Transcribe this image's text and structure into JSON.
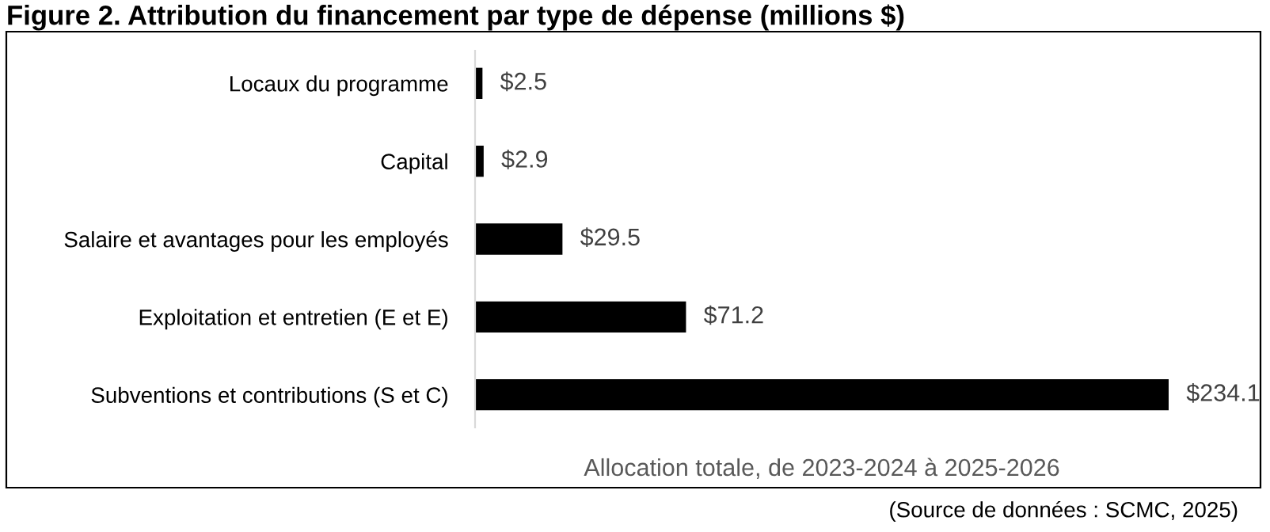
{
  "chart_data": {
    "type": "bar",
    "orientation": "horizontal",
    "title": "Figure 2. Attribution du financement par type de dépense (millions $)",
    "categories": [
      "Locaux du programme",
      "Capital",
      "Salaire et avantages pour les employés",
      "Exploitation et entretien (E et E)",
      "Subventions et contributions (S et C)"
    ],
    "values": [
      2.5,
      2.9,
      29.5,
      71.2,
      234.1
    ],
    "value_labels": [
      "$2.5",
      "$2.9",
      "$29.5",
      "$71.2",
      "$234.1"
    ],
    "color": "#000000",
    "xlabel": "Allocation totale, de 2023-2024 à 2025-2026",
    "annotations": [
      "(Source de données : SCMC, 2025)"
    ],
    "grid": false,
    "legend": false
  }
}
